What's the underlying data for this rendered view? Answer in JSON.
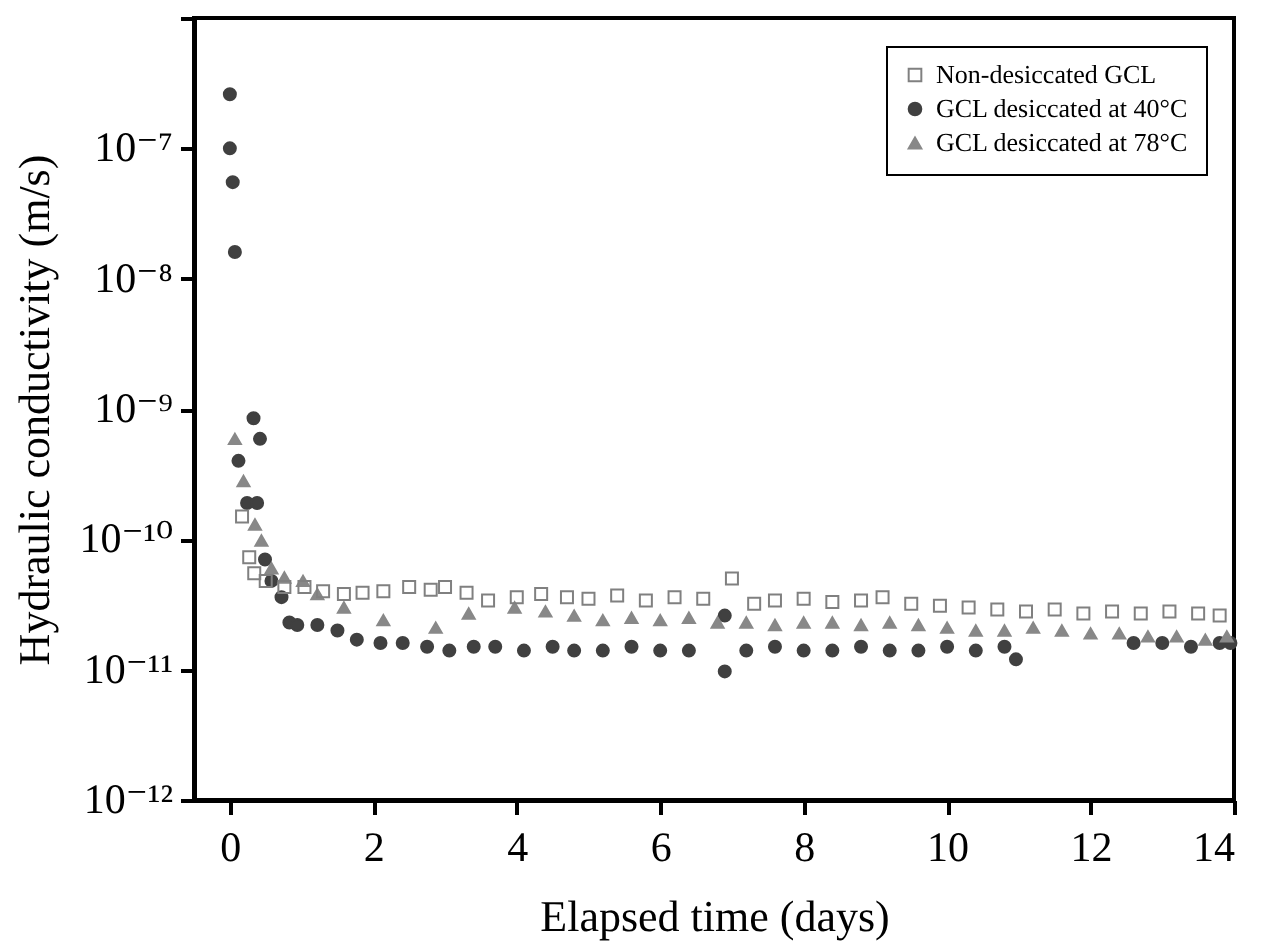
{
  "chart_data": {
    "type": "scatter",
    "xlabel": "Elapsed time (days)",
    "ylabel": "Hydraulic conductivity (m/s)",
    "log": "y",
    "legend": "top right",
    "grid": false,
    "xlim": [
      -0.5,
      14
    ],
    "xticks": [
      0,
      2,
      4,
      6,
      8,
      10,
      12,
      14
    ],
    "ylim": [
      1e-12,
      1e-06
    ],
    "yticks": [
      {
        "value": 1e-12,
        "label": "10⁻¹²"
      },
      {
        "value": 1e-11,
        "label": "10⁻¹¹"
      },
      {
        "value": 1e-10,
        "label": "10⁻¹⁰"
      },
      {
        "value": 1e-09,
        "label": "10⁻⁹"
      },
      {
        "value": 1e-08,
        "label": "10⁻⁸"
      },
      {
        "value": 1e-07,
        "label": "10⁻⁷"
      },
      {
        "value": 1e-06,
        "label": null
      }
    ],
    "series": [
      {
        "name": "Non-desiccated GCL",
        "color": "#808080",
        "marker": "square",
        "x": [
          0.17,
          0.27,
          0.34,
          0.5,
          0.76,
          1.04,
          1.3,
          1.59,
          1.85,
          2.14,
          2.5,
          2.8,
          3.0,
          3.3,
          3.6,
          4.0,
          4.34,
          4.7,
          5.0,
          5.4,
          5.8,
          6.2,
          6.6,
          7.0,
          7.31,
          7.6,
          8.0,
          8.4,
          8.8,
          9.1,
          9.5,
          9.9,
          10.3,
          10.7,
          11.1,
          11.5,
          11.9,
          12.3,
          12.7,
          13.1,
          13.5,
          13.8
        ],
        "values": [
          1.5e-10,
          7.3e-11,
          5.5e-11,
          4.8e-11,
          4.3e-11,
          4.3e-11,
          4e-11,
          3.8e-11,
          3.9e-11,
          4e-11,
          4.3e-11,
          4.1e-11,
          4.3e-11,
          3.9e-11,
          3.4e-11,
          3.6e-11,
          3.8e-11,
          3.6e-11,
          3.5e-11,
          3.7e-11,
          3.4e-11,
          3.6e-11,
          3.5e-11,
          5e-11,
          3.2e-11,
          3.4e-11,
          3.5e-11,
          3.3e-11,
          3.4e-11,
          3.6e-11,
          3.2e-11,
          3.1e-11,
          3e-11,
          2.9e-11,
          2.8e-11,
          2.9e-11,
          2.7e-11,
          2.8e-11,
          2.7e-11,
          2.8e-11,
          2.7e-11,
          2.6e-11
        ]
      },
      {
        "name": "GCL desiccated at 40°C",
        "color": "#404040",
        "marker": "circle",
        "x": [
          0,
          0,
          0.04,
          0.07,
          0.12,
          0.24,
          0.33,
          0.38,
          0.42,
          0.49,
          0.58,
          0.72,
          0.83,
          0.94,
          1.22,
          1.5,
          1.77,
          2.1,
          2.41,
          2.75,
          3.06,
          3.4,
          3.7,
          4.1,
          4.5,
          4.8,
          5.2,
          5.6,
          6.0,
          6.4,
          6.9,
          6.9,
          7.2,
          7.6,
          8.0,
          8.4,
          8.8,
          9.2,
          9.6,
          10.0,
          10.4,
          10.8,
          10.96,
          12.6,
          13.0,
          13.4,
          13.8,
          13.95
        ],
        "values": [
          2.6e-07,
          1e-07,
          5.5e-08,
          1.6e-08,
          4e-10,
          1.9e-10,
          8.5e-10,
          1.9e-10,
          5.9e-10,
          7e-11,
          4.8e-11,
          3.6e-11,
          2.3e-11,
          2.2e-11,
          2.2e-11,
          2e-11,
          1.7e-11,
          1.6e-11,
          1.6e-11,
          1.5e-11,
          1.4e-11,
          1.5e-11,
          1.5e-11,
          1.4e-11,
          1.5e-11,
          1.4e-11,
          1.4e-11,
          1.5e-11,
          1.4e-11,
          1.4e-11,
          9.7e-12,
          2.6e-11,
          1.4e-11,
          1.5e-11,
          1.4e-11,
          1.4e-11,
          1.5e-11,
          1.4e-11,
          1.4e-11,
          1.5e-11,
          1.4e-11,
          1.5e-11,
          1.2e-11,
          1.6e-11,
          1.6e-11,
          1.5e-11,
          1.6e-11,
          1.6e-11
        ]
      },
      {
        "name": "GCL desiccated at 78°C",
        "color": "#888888",
        "marker": "triangle",
        "x": [
          0.07,
          0.19,
          0.35,
          0.44,
          0.58,
          0.76,
          1.02,
          1.22,
          1.59,
          2.14,
          2.87,
          3.33,
          3.97,
          4.4,
          4.8,
          5.2,
          5.6,
          6.0,
          6.4,
          6.8,
          7.2,
          7.6,
          8.0,
          8.4,
          8.8,
          9.2,
          9.6,
          10.0,
          10.4,
          10.8,
          11.2,
          11.6,
          12.0,
          12.4,
          12.8,
          13.2,
          13.6,
          13.9
        ],
        "values": [
          5.9e-10,
          2.8e-10,
          1.3e-10,
          9.8e-11,
          6e-11,
          5.1e-11,
          4.8e-11,
          3.8e-11,
          3e-11,
          2.4e-11,
          2.1e-11,
          2.7e-11,
          3e-11,
          2.8e-11,
          2.6e-11,
          2.4e-11,
          2.5e-11,
          2.4e-11,
          2.5e-11,
          2.3e-11,
          2.3e-11,
          2.2e-11,
          2.3e-11,
          2.3e-11,
          2.2e-11,
          2.3e-11,
          2.2e-11,
          2.1e-11,
          2e-11,
          2e-11,
          2.1e-11,
          2e-11,
          1.9e-11,
          1.9e-11,
          1.8e-11,
          1.8e-11,
          1.7e-11,
          1.8e-11
        ]
      }
    ]
  }
}
